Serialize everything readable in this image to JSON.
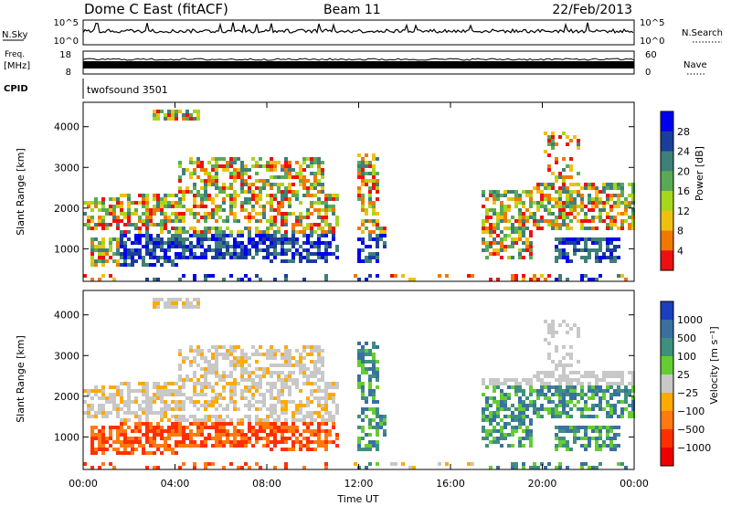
{
  "header": {
    "title": "Dome C East (fitACF)",
    "beam": "Beam 11",
    "date": "22/Feb/2013"
  },
  "top_panels": {
    "nsky_label": "N.Sky",
    "nsky_ticks": [
      "10^5",
      "10^0"
    ],
    "nsearch_label": "N.Search",
    "nsearch_ticks": [
      "10^5",
      "10^0"
    ],
    "freq_label_1": "Freq.",
    "freq_label_2": "[MHz]",
    "freq_ticks": [
      "18",
      "8"
    ],
    "nave_label": "Nave",
    "nave_ticks": [
      "60",
      "0"
    ],
    "cpid_label": "CPID",
    "cpid_value": "twofsound 3501"
  },
  "chart_data": [
    {
      "type": "heatmap",
      "name": "power",
      "ylabel": "Slant Range [km]",
      "yticks": [
        "4000",
        "3000",
        "2000",
        "1000"
      ],
      "ylim": [
        200,
        4600
      ],
      "colorbar_label": "Power [dB]",
      "colorbar_ticks": [
        "28",
        "24",
        "20",
        "16",
        "12",
        "8",
        "4"
      ],
      "colors": [
        "#0000ee",
        "#1a3f9a",
        "#3f7f7a",
        "#5aaa55",
        "#a6d61e",
        "#f0c010",
        "#f07800",
        "#ee1010"
      ]
    },
    {
      "type": "heatmap",
      "name": "velocity",
      "ylabel": "Slant Range [km]",
      "yticks": [
        "4000",
        "3000",
        "2000",
        "1000"
      ],
      "ylim": [
        200,
        4600
      ],
      "xlabel": "Time UT",
      "xticks": [
        "00:00",
        "04:00",
        "08:00",
        "12:00",
        "16:00",
        "20:00",
        "00:00"
      ],
      "xlim": [
        0,
        24
      ],
      "colorbar_label": "Velocity [m s⁻¹]",
      "colorbar_ticks": [
        "1000",
        "500",
        "100",
        "25",
        "−25",
        "−100",
        "−500",
        "−1000"
      ],
      "colors": [
        "#1a40c0",
        "#3a70a0",
        "#3f8f7f",
        "#66cc33",
        "#c8c8c8",
        "#ffaa00",
        "#ff7a10",
        "#ff3000",
        "#ee0000"
      ]
    }
  ]
}
